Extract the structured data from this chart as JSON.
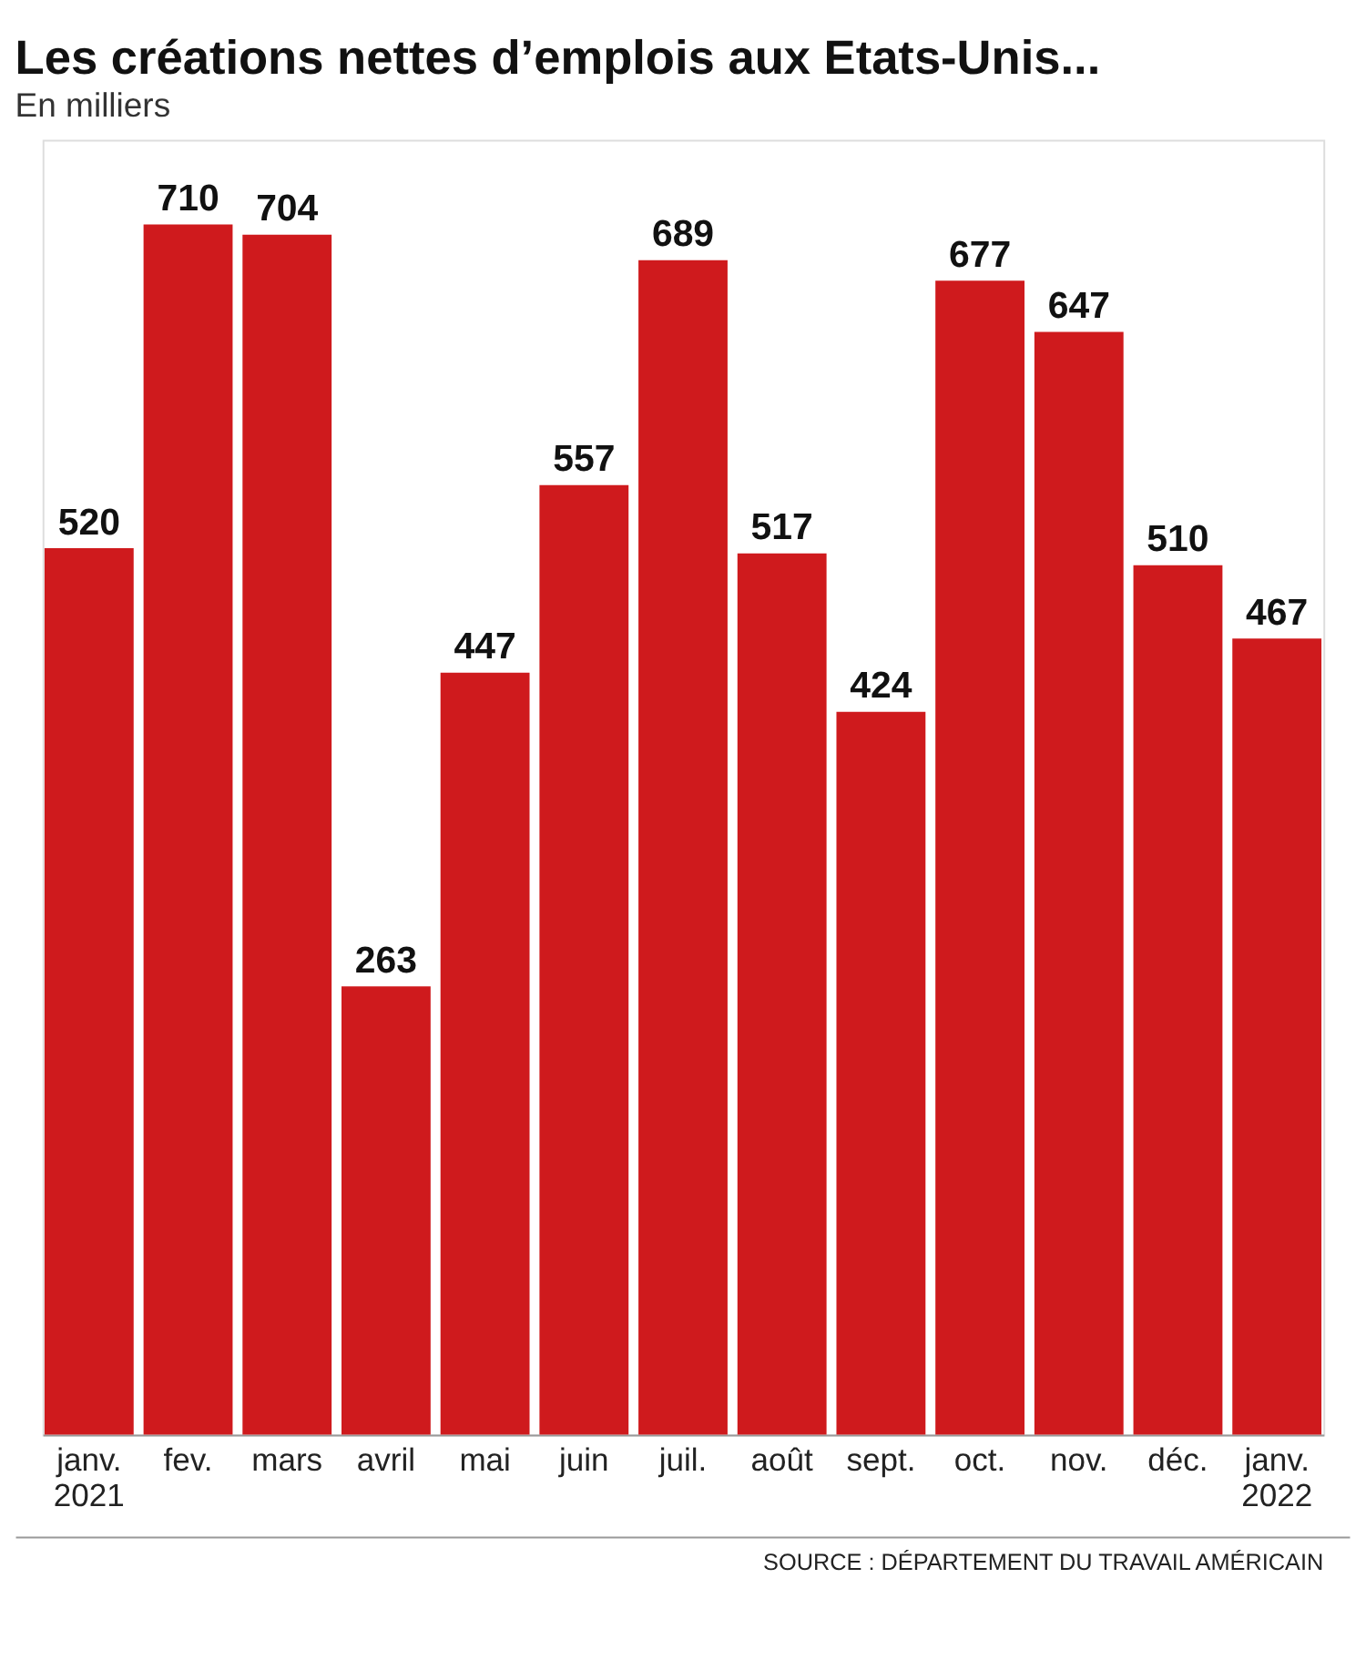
{
  "chart_data": {
    "type": "bar",
    "title": "Les créations nettes d’emplois aux Etats-Unis...",
    "subtitle": "En milliers",
    "categories": [
      "janv.\n2021",
      "fev.",
      "mars",
      "avril",
      "mai",
      "juin",
      "juil.",
      "août",
      "sept.",
      "oct.",
      "nov.",
      "déc.",
      "janv.\n2022"
    ],
    "values": [
      520,
      710,
      704,
      263,
      447,
      557,
      689,
      517,
      424,
      677,
      647,
      510,
      467
    ],
    "color": "#cf1a1d",
    "data_labels": true,
    "annotations": [
      "SOURCE : DÉPARTEMENT DU TRAVAIL AMÉRICAIN"
    ]
  }
}
